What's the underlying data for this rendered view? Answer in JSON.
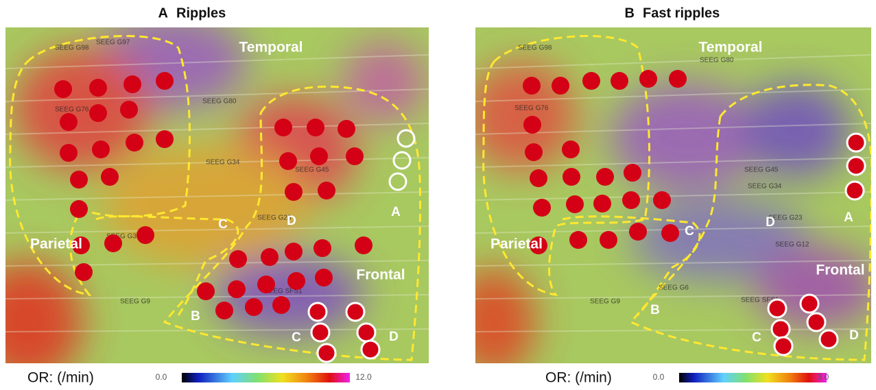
{
  "panels": [
    {
      "letter": "A",
      "title": "Ripples",
      "regions": [
        "Temporal",
        "Parietal",
        "Frontal"
      ],
      "sublabels": [
        "A",
        "B",
        "C",
        "D",
        "C",
        "D"
      ],
      "electrode_labels": [
        "SEEG G98",
        "SEEG G97",
        "SEEG G80",
        "SEEG G76",
        "SEEG G45",
        "SEEG G34",
        "SEEG G23",
        "SEEG G31",
        "SEEG G9",
        "SEEG SFS1"
      ],
      "colorbar": {
        "label": "OR: (/min)",
        "min": "0.0",
        "max": "12.0"
      }
    },
    {
      "letter": "B",
      "title": "Fast ripples",
      "regions": [
        "Temporal",
        "Parietal",
        "Frontal"
      ],
      "sublabels": [
        "A",
        "B",
        "C",
        "D",
        "C",
        "D"
      ],
      "electrode_labels": [
        "SEEG G98",
        "SEEG G80",
        "SEEG G76",
        "SEEG G45",
        "SEEG G34",
        "SEEG G23",
        "SEEG G12",
        "SEEG G9",
        "SEEG SFS1",
        "SEEG G6"
      ],
      "colorbar": {
        "label": "OR: (/min)",
        "min": "0.0",
        "max": "3.0"
      }
    }
  ]
}
